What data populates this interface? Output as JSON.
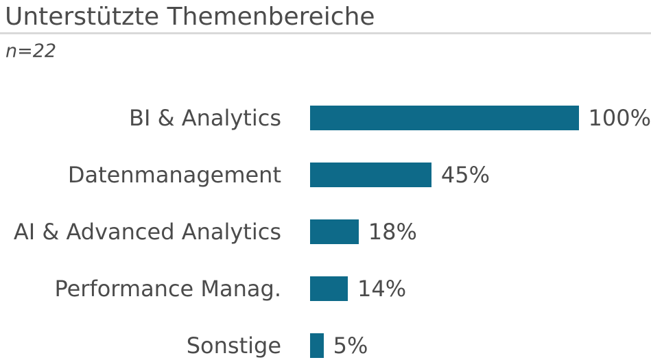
{
  "header": {
    "title": "Unterstützte Themenbereiche",
    "subtitle": "n=22"
  },
  "chart_data": {
    "type": "bar",
    "orientation": "horizontal",
    "title": "Unterstützte Themenbereiche",
    "subtitle": "n=22",
    "categories": [
      "BI & Analytics",
      "Datenmanagement",
      "AI & Advanced Analytics",
      "Performance Manag.",
      "Sonstige"
    ],
    "values": [
      100,
      45,
      18,
      14,
      5
    ],
    "value_labels": [
      "100%",
      "45%",
      "18%",
      "14%",
      "5%"
    ],
    "xlabel": "",
    "ylabel": "",
    "xlim": [
      0,
      100
    ],
    "grid": false,
    "legend": false,
    "bar_color": "#0e6a89",
    "text_color": "#4b4b4b",
    "divider_color": "#d9d9d9"
  }
}
